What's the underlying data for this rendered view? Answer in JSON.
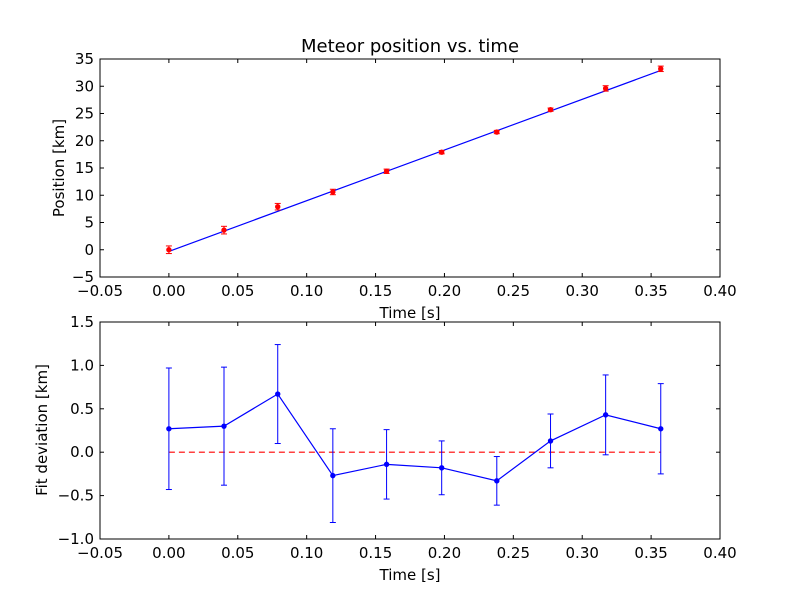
{
  "chart_data": [
    {
      "type": "line",
      "title": "Meteor position vs. time",
      "xlabel": "Time [s]",
      "ylabel": "Position [km]",
      "xlim": [
        -0.05,
        0.4
      ],
      "ylim": [
        -5,
        35
      ],
      "xticks": [
        "−0.05",
        "0.00",
        "0.05",
        "0.10",
        "0.15",
        "0.20",
        "0.25",
        "0.30",
        "0.35",
        "0.40"
      ],
      "yticks": [
        "−5",
        "0",
        "5",
        "10",
        "15",
        "20",
        "25",
        "30",
        "35"
      ],
      "grid": false,
      "series": [
        {
          "kind": "errorbar-points",
          "color": "#ff0000",
          "x": [
            0.0,
            0.04,
            0.079,
            0.119,
            0.158,
            0.198,
            0.238,
            0.277,
            0.317,
            0.357
          ],
          "y": [
            0.0,
            3.6,
            7.9,
            10.6,
            14.4,
            17.9,
            21.6,
            25.7,
            29.6,
            33.2
          ],
          "yerr": [
            0.7,
            0.7,
            0.6,
            0.5,
            0.4,
            0.3,
            0.3,
            0.3,
            0.5,
            0.5
          ]
        },
        {
          "kind": "fit-line",
          "color": "#0000ff",
          "x": [
            0.0,
            0.357
          ],
          "y": [
            -0.3,
            32.9
          ]
        }
      ]
    },
    {
      "type": "line",
      "title": "",
      "xlabel": "Time [s]",
      "ylabel": "Fit deviation [km]",
      "xlim": [
        -0.05,
        0.4
      ],
      "ylim": [
        -1.0,
        1.5
      ],
      "xticks": [
        "−0.05",
        "0.00",
        "0.05",
        "0.10",
        "0.15",
        "0.20",
        "0.25",
        "0.30",
        "0.35",
        "0.40"
      ],
      "yticks": [
        "−1.0",
        "−0.5",
        "0.0",
        "0.5",
        "1.0",
        "1.5"
      ],
      "grid": false,
      "series": [
        {
          "kind": "errorbar-line",
          "color": "#0000ff",
          "x": [
            0.0,
            0.04,
            0.079,
            0.119,
            0.158,
            0.198,
            0.238,
            0.277,
            0.317,
            0.357
          ],
          "y": [
            0.27,
            0.3,
            0.67,
            -0.27,
            -0.14,
            -0.18,
            -0.33,
            0.13,
            0.43,
            0.27
          ],
          "yerr": [
            0.7,
            0.68,
            0.57,
            0.54,
            0.4,
            0.31,
            0.28,
            0.31,
            0.46,
            0.52
          ]
        },
        {
          "kind": "reference-line",
          "color": "#ff0000",
          "style": "dashed",
          "x": [
            0.0,
            0.357
          ],
          "y": [
            0.0,
            0.0
          ]
        }
      ]
    }
  ]
}
